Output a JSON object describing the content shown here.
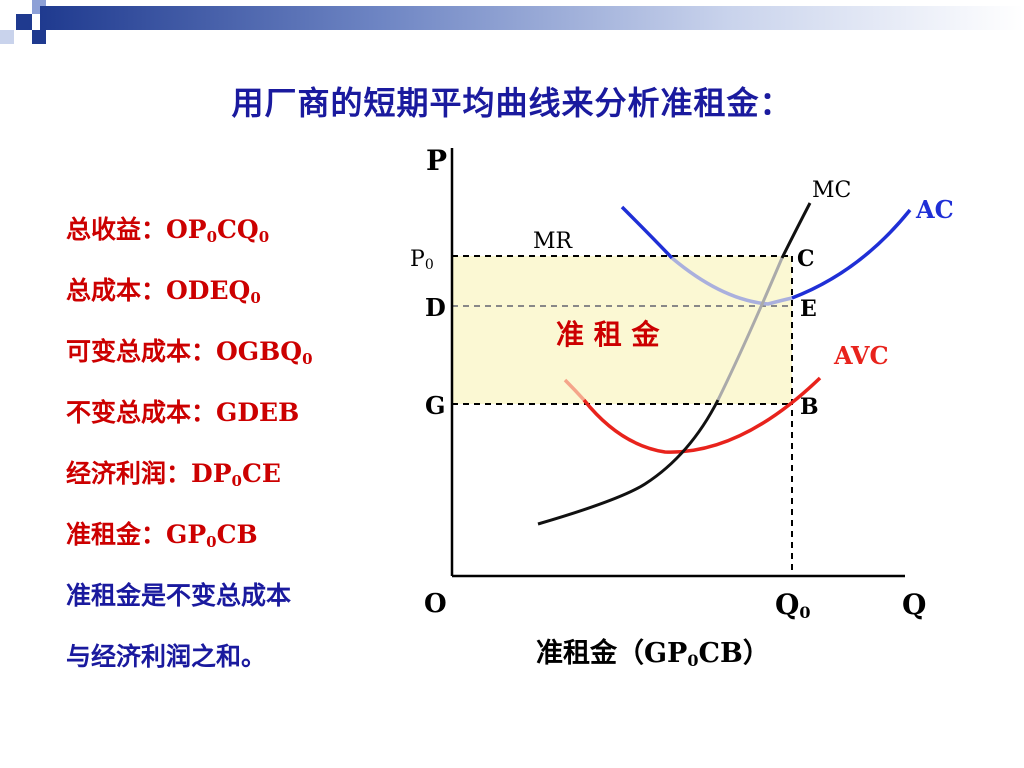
{
  "title": "用厂商的短期平均曲线来分析准租金：",
  "lines": [
    {
      "label": "总收益：",
      "formula": [
        "OP",
        "0",
        "CQ",
        "0"
      ]
    },
    {
      "label": "总成本：",
      "formula": [
        "ODEQ",
        "0"
      ]
    },
    {
      "label": "可变总成本：",
      "formula": [
        "OGBQ",
        "0"
      ]
    },
    {
      "label": "不变总成本：",
      "formula": [
        "GDEB"
      ]
    },
    {
      "label": "经济利润：",
      "formula": [
        "DP",
        "0",
        "CE"
      ]
    },
    {
      "label": "准租金：",
      "formula": [
        "GP",
        "0",
        "CB"
      ]
    }
  ],
  "conclusion": [
    "准租金是不变总成本",
    "与经济利润之和。"
  ],
  "diagram": {
    "axis_y": "P",
    "axis_x": "Q",
    "origin": "O",
    "q0": "Q",
    "q0_sub": "0",
    "p0": "P",
    "p0_sub": "0",
    "d": "D",
    "g": "G",
    "c": "C",
    "e": "E",
    "b": "B",
    "mc": "MC",
    "mr": "MR",
    "ac": "AC",
    "avc": "AVC",
    "region": "准 租 金",
    "caption_main": "准租金（GP",
    "caption_sub": "0",
    "caption_end": "CB）"
  },
  "colors": {
    "title": "#1a1a9e",
    "text_red": "#cc0000",
    "ac": "#1f2fd6",
    "avc": "#e8231c",
    "mc": "#111111",
    "region_fill": "#fbf8d3"
  }
}
